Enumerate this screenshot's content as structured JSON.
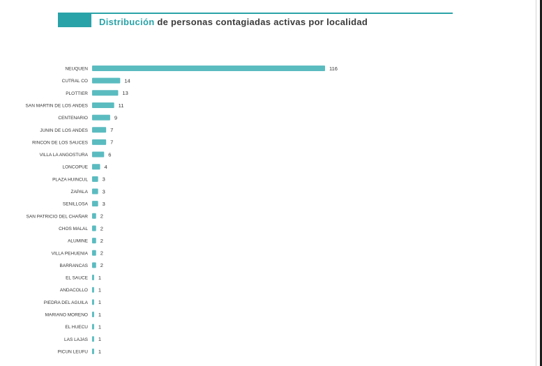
{
  "title": {
    "highlight": "Distribución",
    "rest": "de personas contagiadas activas por localidad"
  },
  "colors": {
    "accent": "#2aa3a8",
    "bar": "#5bbcc0",
    "text": "#333333"
  },
  "chart_data": {
    "type": "bar",
    "orientation": "horizontal",
    "title": "Distribución de personas contagiadas activas por localidad",
    "xlabel": "",
    "ylabel": "",
    "grid": false,
    "categories": [
      "NEUQUEN",
      "CUTRAL CO",
      "PLOTTIER",
      "SAN MARTIN DE LOS ANDES",
      "CENTENARIO",
      "JUNIN DE LOS ANDES",
      "RINCON DE LOS SAUCES",
      "VILLA LA ANGOSTURA",
      "LONCOPUE",
      "PLAZA HUINCUL",
      "ZAPALA",
      "SENILLOSA",
      "SAN PATRICIO DEL CHAÑAR",
      "CHOS MALAL",
      "ALUMINE",
      "VILLA PEHUENIA",
      "BARRANCAS",
      "EL SAUCE",
      "ANDACOLLO",
      "PIEDRA DEL AGUILA",
      "MARIANO MORENO",
      "EL HUECU",
      "LAS LAJAS",
      "PICUN LEUFU"
    ],
    "values": [
      116,
      14,
      13,
      11,
      9,
      7,
      7,
      6,
      4,
      3,
      3,
      3,
      2,
      2,
      2,
      2,
      2,
      1,
      1,
      1,
      1,
      1,
      1,
      1
    ]
  }
}
